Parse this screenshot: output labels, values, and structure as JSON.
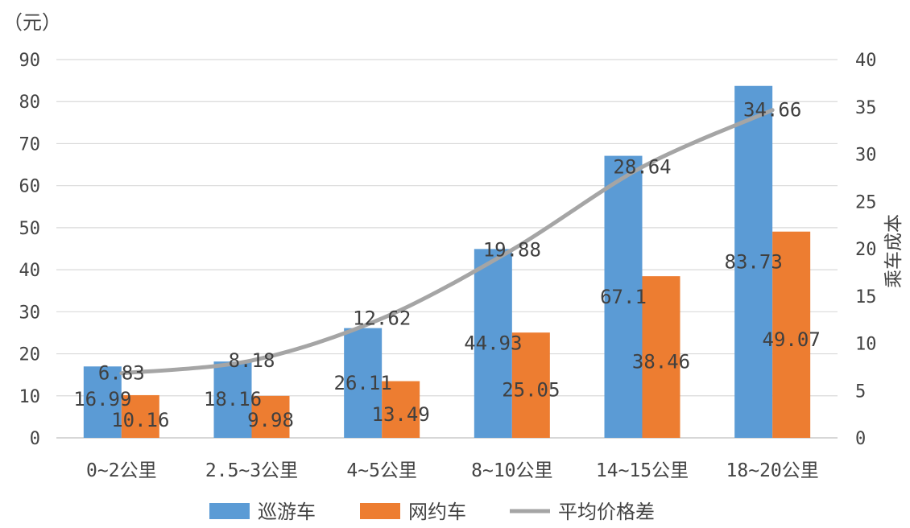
{
  "chart_data": {
    "type": "bar",
    "y_unit_label": "（元）",
    "y2label": "乘车成本",
    "categories": [
      "0~2公里",
      "2.5~3公里",
      "4~5公里",
      "8~10公里",
      "14~15公里",
      "18~20公里"
    ],
    "ylim": [
      0,
      90
    ],
    "y_ticks": [
      "0",
      "10",
      "20",
      "30",
      "40",
      "50",
      "60",
      "70",
      "80",
      "90"
    ],
    "y2lim": [
      0,
      40
    ],
    "y2_ticks": [
      "0",
      "5",
      "10",
      "15",
      "20",
      "25",
      "30",
      "35",
      "40"
    ],
    "grid": true,
    "legend_position": "bottom",
    "series": [
      {
        "name": "巡游车",
        "kind": "bar",
        "axis": "left",
        "color": "#5B9BD5",
        "values": [
          16.99,
          18.16,
          26.11,
          44.93,
          67.1,
          83.73
        ],
        "labels": [
          "16.99",
          "18.16",
          "26.11",
          "44.93",
          "67.1",
          "83.73"
        ]
      },
      {
        "name": "网约车",
        "kind": "bar",
        "axis": "left",
        "color": "#ED7D31",
        "values": [
          10.16,
          9.98,
          13.49,
          25.05,
          38.46,
          49.07
        ],
        "labels": [
          "10.16",
          "9.98",
          "13.49",
          "25.05",
          "38.46",
          "49.07"
        ]
      },
      {
        "name": "平均价格差",
        "kind": "line",
        "axis": "right",
        "color": "#A5A5A5",
        "values": [
          6.83,
          8.18,
          12.62,
          19.88,
          28.64,
          34.66
        ],
        "labels": [
          "6.83",
          "8.18",
          "12.62",
          "19.88",
          "28.64",
          "34.66"
        ]
      }
    ]
  }
}
